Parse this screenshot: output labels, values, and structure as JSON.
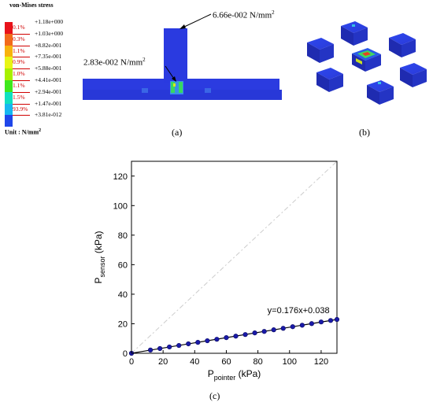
{
  "legend": {
    "title": "von-Mises stress",
    "unit_prefix": "Unit : ",
    "unit_label": "N/mm",
    "unit_exp": "2",
    "colors": [
      "#e8121a",
      "#f26a1b",
      "#f7b30d",
      "#e8f516",
      "#a8f000",
      "#3ee81c",
      "#0fe0c0",
      "#16b7f0",
      "#1f46ea"
    ],
    "percents": [
      "0.1%",
      "0.3%",
      "1.1%",
      "0.9%",
      "1.0%",
      "1.1%",
      "1.5%",
      "93.9%"
    ],
    "values": [
      "+1.18e+000",
      "+1.03e+000",
      "+8.82e-001",
      "+7.35e-001",
      "+5.88e-001",
      "+4.41e-001",
      "+2.94e-001",
      "+1.47e-001",
      "+3.81e-012"
    ]
  },
  "panel_a": {
    "annotation_top": "6.66e-002 N/mm",
    "annotation_top_exp": "2",
    "annotation_mid": "2.83e-002 N/mm",
    "annotation_mid_exp": "2",
    "caption": "(a)"
  },
  "panel_b": {
    "caption": "(b)"
  },
  "chart_data": {
    "type": "scatter",
    "xlabel_main": "P",
    "xlabel_sub": "pointer",
    "xlabel_unit": " (kPa)",
    "ylabel_main": "P",
    "ylabel_sub": "sensor",
    "ylabel_unit": " (kPa)",
    "xlim": [
      0,
      130
    ],
    "ylim": [
      0,
      130
    ],
    "xticks": [
      0,
      20,
      40,
      60,
      80,
      100,
      120
    ],
    "yticks": [
      0,
      20,
      40,
      60,
      80,
      100,
      120
    ],
    "fit_equation": "y=0.176x+0.038",
    "reference_line": {
      "x": [
        0,
        130
      ],
      "y": [
        0,
        130
      ],
      "style": "dashed",
      "color": "#cccccc"
    },
    "fit_line": {
      "x": [
        0,
        130
      ],
      "y": [
        0.038,
        22.92
      ],
      "color": "#000000"
    },
    "series": [
      {
        "color": "#1a1aa8",
        "x": [
          0,
          12,
          18,
          24,
          30,
          36,
          42,
          48,
          54,
          60,
          66,
          72,
          78,
          84,
          90,
          96,
          102,
          108,
          114,
          120,
          126,
          130
        ],
        "y": [
          0,
          2.2,
          3.2,
          4.3,
          5.3,
          6.4,
          7.4,
          8.5,
          9.5,
          10.6,
          11.6,
          12.7,
          13.8,
          14.8,
          15.9,
          16.9,
          18.0,
          19.0,
          20.1,
          21.2,
          22.2,
          22.9
        ]
      }
    ],
    "caption": "(c)"
  }
}
